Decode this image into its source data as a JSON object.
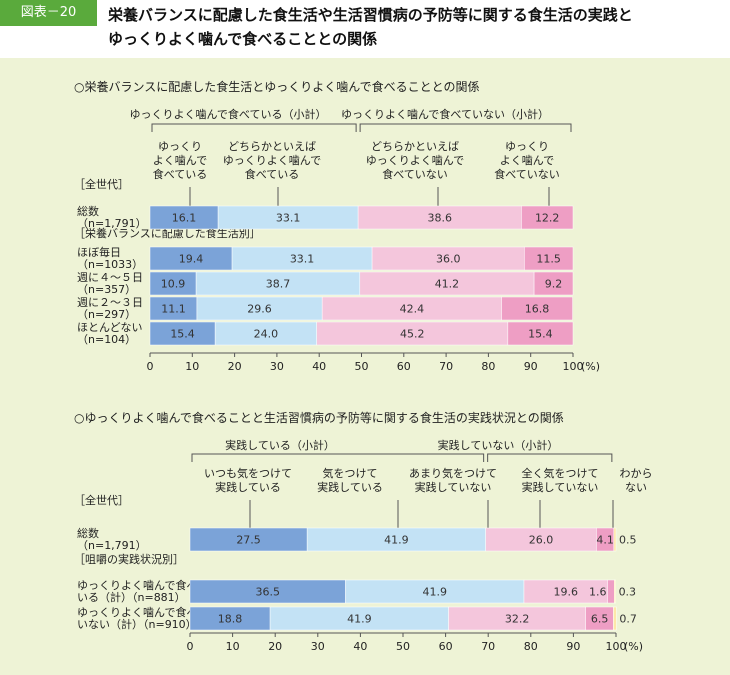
{
  "header": {
    "badge": "図表－20",
    "title_line1": "栄養バランスに配慮した食生活や生活習慣病の予防等に関する食生活の実践と",
    "title_line2": "ゆっくりよく噛んで食べることとの関係"
  },
  "colors": {
    "dark_blue": "#7ba3d8",
    "light_blue": "#c3e2f5",
    "light_pink": "#f4c6dc",
    "dark_pink": "#ee9ec4",
    "unknown": "#fde8a8"
  },
  "chart_data": [
    {
      "type": "bar",
      "stacked": true,
      "orientation": "horizontal",
      "title": "○栄養バランスに配慮した食生活とゆっくりよく噛んで食べることとの関係",
      "group_labels": [
        {
          "text": "ゆっくりよく噛んで食べている（小計）"
        },
        {
          "text": "ゆっくりよく噛んで食べていない（小計）"
        }
      ],
      "series_labels": [
        [
          "ゆっくり",
          "よく噛んで",
          "食べている"
        ],
        [
          "どちらかといえば",
          "ゆっくりよく噛んで",
          "食べている"
        ],
        [
          "どちらかといえば",
          "ゆっくりよく噛んで",
          "食べていない"
        ],
        [
          "ゆっくり",
          "よく噛んで",
          "食べていない"
        ]
      ],
      "sections": [
        "［全世代］",
        "［栄養バランスに配慮した食生活別］"
      ],
      "rows": [
        {
          "label": [
            "総数",
            "（n=1,791）"
          ],
          "values": [
            16.1,
            33.1,
            38.6,
            12.2
          ],
          "labels": [
            "16.1",
            "33.1",
            "38.6",
            "12.2"
          ]
        },
        {
          "label": [
            "ほぼ毎日",
            "（n=1033）"
          ],
          "values": [
            19.4,
            33.1,
            36.0,
            11.5
          ],
          "labels": [
            "19.4",
            "33.1",
            "36.0",
            "11.5"
          ]
        },
        {
          "label": [
            "週に４～５日",
            "（n=357）"
          ],
          "values": [
            10.9,
            38.7,
            41.2,
            9.2
          ],
          "labels": [
            "10.9",
            "38.7",
            "41.2",
            "9.2"
          ]
        },
        {
          "label": [
            "週に２～３日",
            "（n=297）"
          ],
          "values": [
            11.1,
            29.6,
            42.4,
            16.8
          ],
          "labels": [
            "11.1",
            "29.6",
            "42.4",
            "16.8"
          ]
        },
        {
          "label": [
            "ほとんどない",
            "（n=104）"
          ],
          "values": [
            15.4,
            24.0,
            45.2,
            15.4
          ],
          "labels": [
            "15.4",
            "24.0",
            "45.2",
            "15.4"
          ]
        }
      ],
      "xlim": [
        0,
        100
      ],
      "ticks": [
        "0",
        "10",
        "20",
        "30",
        "40",
        "50",
        "60",
        "70",
        "80",
        "90",
        "100"
      ],
      "unit": "(%)"
    },
    {
      "type": "bar",
      "stacked": true,
      "orientation": "horizontal",
      "title": "○ゆっくりよく噛んで食べることと生活習慣病の予防等に関する食生活の実践状況との関係",
      "group_labels": [
        {
          "text": "実践している（小計）"
        },
        {
          "text": "実践していない（小計）"
        }
      ],
      "series_labels": [
        [
          "いつも気をつけて",
          "実践している"
        ],
        [
          "気をつけて",
          "実践している"
        ],
        [
          "あまり気をつけて",
          "実践していない"
        ],
        [
          "全く気をつけて",
          "実践していない"
        ],
        [
          "わから",
          "ない"
        ]
      ],
      "sections": [
        "［全世代］",
        "［咀嚼の実践状況別］"
      ],
      "rows": [
        {
          "label": [
            "総数",
            "（n=1,791）"
          ],
          "values": [
            27.5,
            41.9,
            26.0,
            4.1,
            0.5
          ],
          "labels": [
            "27.5",
            "41.9",
            "26.0",
            "4.1",
            "0.5"
          ]
        },
        {
          "label": [
            "ゆっくりよく噛んで食べて",
            "いる（計）（n=881）"
          ],
          "values": [
            36.5,
            41.9,
            19.6,
            1.6,
            0.3
          ],
          "labels": [
            "36.5",
            "41.9",
            "19.6",
            "1.6",
            "0.3"
          ]
        },
        {
          "label": [
            "ゆっくりよく噛んで食べて",
            "いない（計）（n=910）"
          ],
          "values": [
            18.8,
            41.9,
            32.2,
            6.5,
            0.7
          ],
          "labels": [
            "18.8",
            "41.9",
            "32.2",
            "6.5",
            "0.7"
          ]
        }
      ],
      "xlim": [
        0,
        100
      ],
      "ticks": [
        "0",
        "10",
        "20",
        "30",
        "40",
        "50",
        "60",
        "70",
        "80",
        "90",
        "100"
      ],
      "unit": "(%)"
    }
  ]
}
